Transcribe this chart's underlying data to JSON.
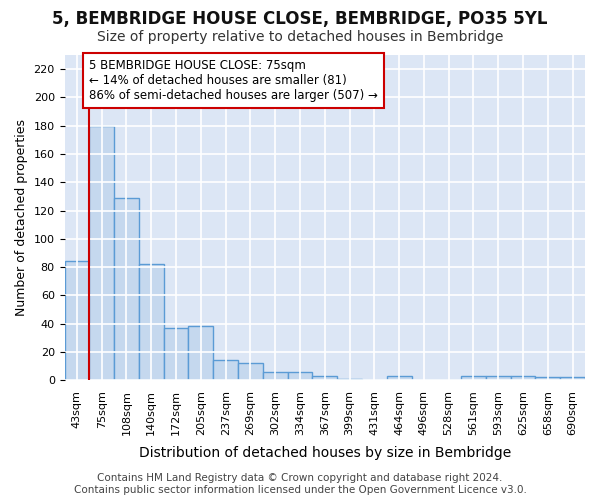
{
  "title": "5, BEMBRIDGE HOUSE CLOSE, BEMBRIDGE, PO35 5YL",
  "subtitle": "Size of property relative to detached houses in Bembridge",
  "xlabel": "Distribution of detached houses by size in Bembridge",
  "ylabel": "Number of detached properties",
  "categories": [
    "43sqm",
    "75sqm",
    "108sqm",
    "140sqm",
    "172sqm",
    "205sqm",
    "237sqm",
    "269sqm",
    "302sqm",
    "334sqm",
    "367sqm",
    "399sqm",
    "431sqm",
    "464sqm",
    "496sqm",
    "528sqm",
    "561sqm",
    "593sqm",
    "625sqm",
    "658sqm",
    "690sqm"
  ],
  "values": [
    84,
    180,
    129,
    82,
    37,
    38,
    14,
    12,
    6,
    6,
    3,
    1,
    0,
    3,
    0,
    0,
    3,
    3,
    3,
    2,
    2
  ],
  "bar_facecolor": "#c5d8ee",
  "bar_edgecolor": "#5b9bd5",
  "bar_linewidth": 1.0,
  "vline_color": "#cc0000",
  "vline_linewidth": 1.5,
  "vline_index": 1,
  "ylim": [
    0,
    230
  ],
  "yticks": [
    0,
    20,
    40,
    60,
    80,
    100,
    120,
    140,
    160,
    180,
    200,
    220
  ],
  "annotation_box_text": "5 BEMBRIDGE HOUSE CLOSE: 75sqm\n← 14% of detached houses are smaller (81)\n86% of semi-detached houses are larger (507) →",
  "annotation_box_edgecolor": "#cc0000",
  "annotation_box_facecolor": "white",
  "footer_text": "Contains HM Land Registry data © Crown copyright and database right 2024.\nContains public sector information licensed under the Open Government Licence v3.0.",
  "background_color": "#dce6f5",
  "grid_color": "white",
  "title_fontsize": 12,
  "subtitle_fontsize": 10,
  "ylabel_fontsize": 9,
  "xlabel_fontsize": 10,
  "tick_fontsize": 8,
  "annotation_fontsize": 8.5,
  "footer_fontsize": 7.5
}
